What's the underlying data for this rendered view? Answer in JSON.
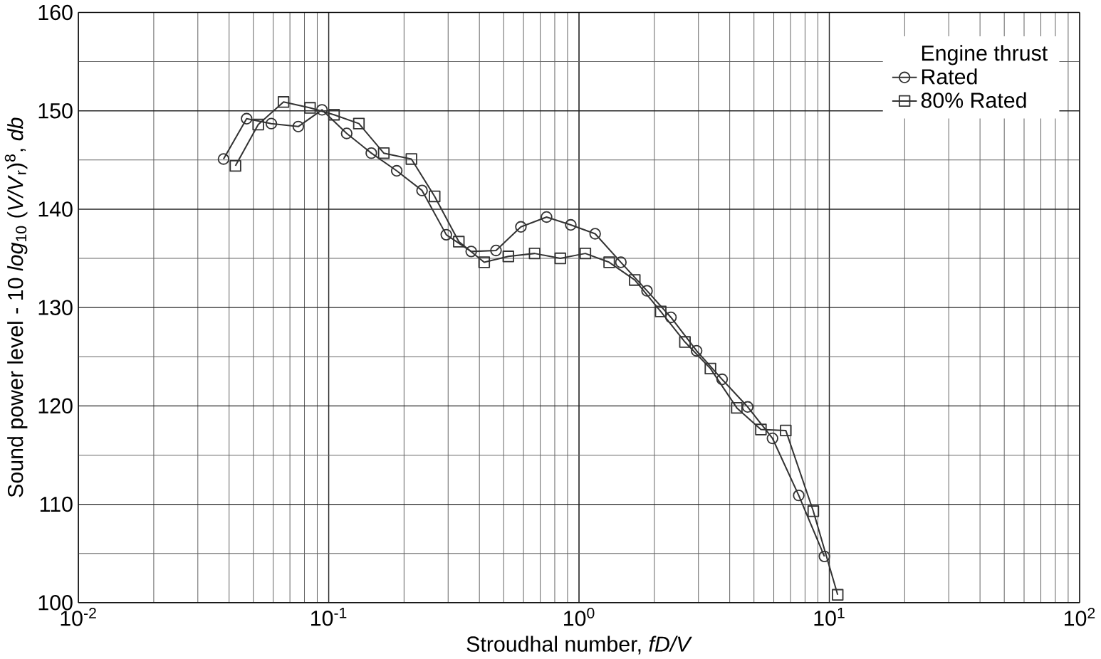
{
  "chart_data": {
    "type": "line",
    "xlabel": "Stroudhal number,  *fD/V*",
    "ylabel": "Sound power level - 10 *log*$_{10}$ (*V/V*$_{r}$)$^{8}$, *db*",
    "legend_title": "Engine thrust",
    "log": "x",
    "grid": true,
    "legend": "top right",
    "line_style": "solid",
    "xlim": [
      0.01,
      100
    ],
    "ylim": [
      100,
      160
    ],
    "xticks": [
      {
        "value": 0.01,
        "label": "10$^{-2}$"
      },
      {
        "value": 0.1,
        "label": "10$^{-1}$"
      },
      {
        "value": 1,
        "label": "10$^{0}$"
      },
      {
        "value": 10,
        "label": "10$^{1}$"
      },
      {
        "value": 100,
        "label": "10$^{2}$"
      }
    ],
    "yticks": [
      100,
      110,
      120,
      130,
      140,
      150,
      160
    ],
    "series": [
      {
        "name": "Rated",
        "color": "#333333",
        "marker": "circle",
        "x": [
          0.038,
          0.047,
          0.059,
          0.0756,
          0.094,
          0.118,
          0.148,
          0.187,
          0.236,
          0.295,
          0.371,
          0.466,
          0.586,
          0.742,
          0.927,
          1.16,
          1.47,
          1.87,
          2.33,
          2.95,
          3.73,
          4.72,
          5.93,
          7.55,
          9.56
        ],
        "values": [
          145.1,
          149.2,
          148.7,
          148.4,
          150.1,
          147.7,
          145.7,
          143.9,
          141.9,
          137.4,
          135.7,
          135.8,
          138.2,
          139.2,
          138.4,
          137.5,
          134.6,
          131.7,
          129.0,
          125.6,
          122.7,
          119.9,
          116.7,
          110.9,
          104.7
        ]
      },
      {
        "name": "80% Rated",
        "color": "#333333",
        "marker": "square",
        "x": [
          0.0424,
          0.0523,
          0.066,
          0.0842,
          0.105,
          0.132,
          0.166,
          0.214,
          0.265,
          0.331,
          0.418,
          0.522,
          0.665,
          0.842,
          1.06,
          1.32,
          1.67,
          2.12,
          2.65,
          3.35,
          4.27,
          5.33,
          6.7,
          8.63,
          10.8
        ],
        "values": [
          144.4,
          148.6,
          150.9,
          150.3,
          149.6,
          148.7,
          145.7,
          145.1,
          141.3,
          136.7,
          134.6,
          135.2,
          135.5,
          135.0,
          135.5,
          134.6,
          132.8,
          129.6,
          126.5,
          123.8,
          119.8,
          117.6,
          117.5,
          109.3,
          100.8
        ]
      }
    ]
  }
}
